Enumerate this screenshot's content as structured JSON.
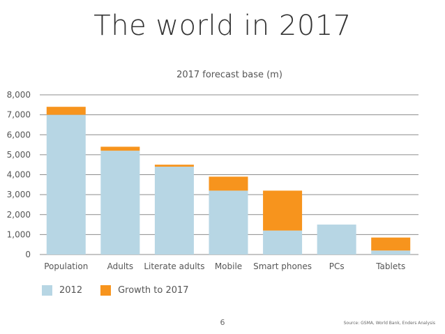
{
  "slide": {
    "title": "The world in 2017",
    "page_number": "6",
    "source": "Source: GSMA, World Bank, Enders Analysis"
  },
  "colors": {
    "base_2012": "#b7d6e4",
    "growth": "#f7941d",
    "gridline": "#8c8c8c",
    "text": "#555555"
  },
  "legend": {
    "base_label": "2012",
    "growth_label": "Growth to 2017"
  },
  "chart_data": {
    "type": "bar",
    "stacked": true,
    "title": "2017 forecast base (m)",
    "categories": [
      "Population",
      "Adults",
      "Literate adults",
      "Mobile",
      "Smart phones",
      "PCs",
      "Tablets"
    ],
    "series": [
      {
        "name": "2012",
        "values": [
          7000,
          5200,
          4400,
          3200,
          1200,
          1500,
          200
        ]
      },
      {
        "name": "Growth to 2017",
        "values": [
          400,
          200,
          100,
          700,
          2000,
          0,
          650
        ]
      }
    ],
    "ylim": [
      0,
      8000
    ],
    "y_ticks": [
      "0",
      "1,000",
      "2,000",
      "3,000",
      "4,000",
      "5,000",
      "6,000",
      "7,000",
      "8,000"
    ],
    "grid": true,
    "legend_position": "bottom-left"
  }
}
